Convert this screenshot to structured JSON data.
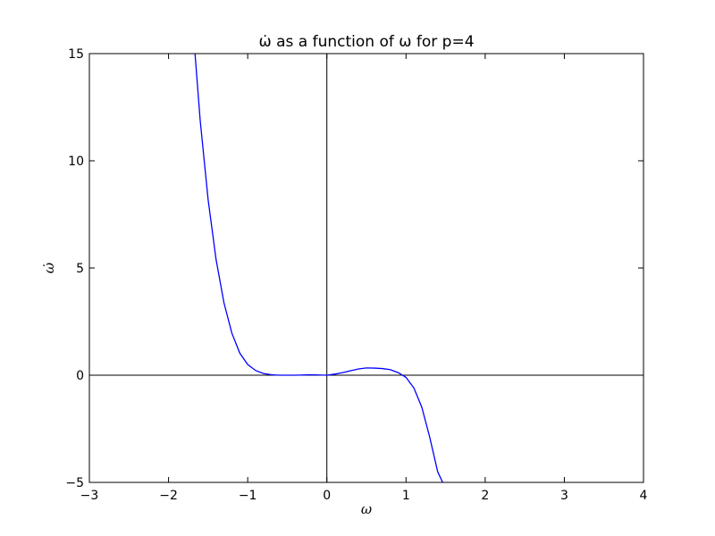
{
  "chart_data": {
    "type": "line",
    "title": "ω̇ as a function of ω for p=4",
    "xlabel": "ω",
    "ylabel": "ω̇",
    "xlim": [
      -3,
      4
    ],
    "ylim": [
      -5,
      15
    ],
    "xticks": [
      -3,
      -2,
      -1,
      0,
      1,
      2,
      3,
      4
    ],
    "xtick_labels": [
      "−3",
      "−2",
      "−1",
      "0",
      "1",
      "2",
      "3",
      "4"
    ],
    "yticks": [
      -5,
      0,
      5,
      10,
      15
    ],
    "ytick_labels": [
      "−5",
      "0",
      "5",
      "10",
      "15"
    ],
    "grid": false,
    "reference_lines": {
      "x": 0,
      "y": 0
    },
    "series": [
      {
        "color": "#0000ff",
        "x": [
          -1.7,
          -1.6,
          -1.5,
          -1.4,
          -1.3,
          -1.2,
          -1.1,
          -1.0,
          -0.9,
          -0.8,
          -0.7,
          -0.6,
          -0.5,
          -0.4,
          -0.3,
          -0.2,
          -0.1,
          0.0,
          0.1,
          0.2,
          0.3,
          0.4,
          0.5,
          0.6,
          0.7,
          0.8,
          0.9,
          1.0,
          1.1,
          1.2,
          1.3,
          1.4,
          1.5
        ],
        "y": [
          16.65,
          11.88,
          8.19,
          5.41,
          3.38,
          1.96,
          1.03,
          0.5,
          0.22,
          0.08,
          0.02,
          0.0,
          0.0,
          0.0,
          0.01,
          0.02,
          0.01,
          0.0,
          0.05,
          0.12,
          0.21,
          0.29,
          0.34,
          0.33,
          0.31,
          0.26,
          0.12,
          -0.1,
          -0.6,
          -1.5,
          -2.9,
          -4.5,
          -5.3
        ]
      }
    ]
  }
}
